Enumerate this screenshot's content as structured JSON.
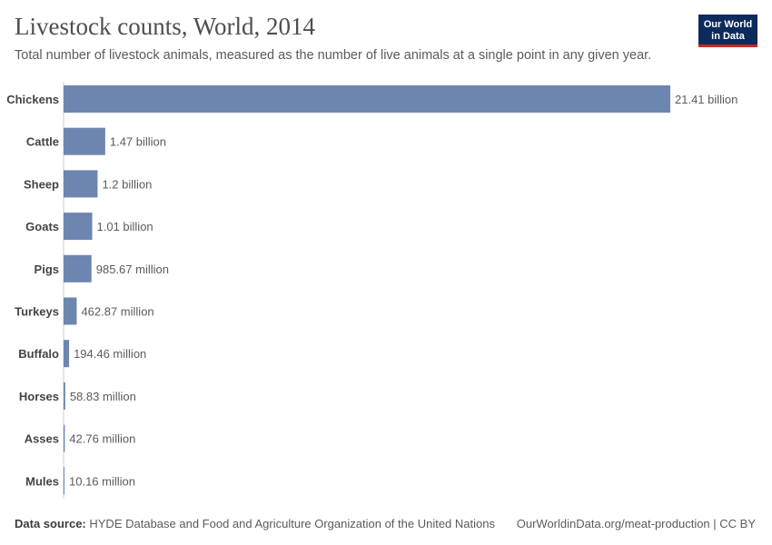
{
  "header": {
    "title": "Livestock counts, World, 2014",
    "subtitle": "Total number of livestock animals, measured as the number of live animals at a single point in any given year.",
    "logo_line1": "Our World",
    "logo_line2": "in Data"
  },
  "footer": {
    "source_label": "Data source:",
    "source_text": "HYDE Database and Food and Agriculture Organization of the United Nations",
    "url_text": "OurWorldinData.org/meat-production | CC BY"
  },
  "colors": {
    "bar": "#6d86b0",
    "label": "#444444",
    "value": "#5b5b5b",
    "axis": "#cccccc"
  },
  "chart_data": {
    "type": "bar",
    "orientation": "horizontal",
    "title": "Livestock counts, World, 2014",
    "unit": "animals",
    "categories": [
      "Chickens",
      "Cattle",
      "Sheep",
      "Goats",
      "Pigs",
      "Turkeys",
      "Buffalo",
      "Horses",
      "Asses",
      "Mules"
    ],
    "values": [
      21410000000,
      1470000000,
      1200000000,
      1010000000,
      985670000,
      462870000,
      194460000,
      58830000,
      42760000,
      10160000
    ],
    "value_labels": [
      "21.41 billion",
      "1.47 billion",
      "1.2 billion",
      "1.01 billion",
      "985.67 million",
      "462.87 million",
      "194.46 million",
      "58.83 million",
      "42.76 million",
      "10.16 million"
    ]
  }
}
